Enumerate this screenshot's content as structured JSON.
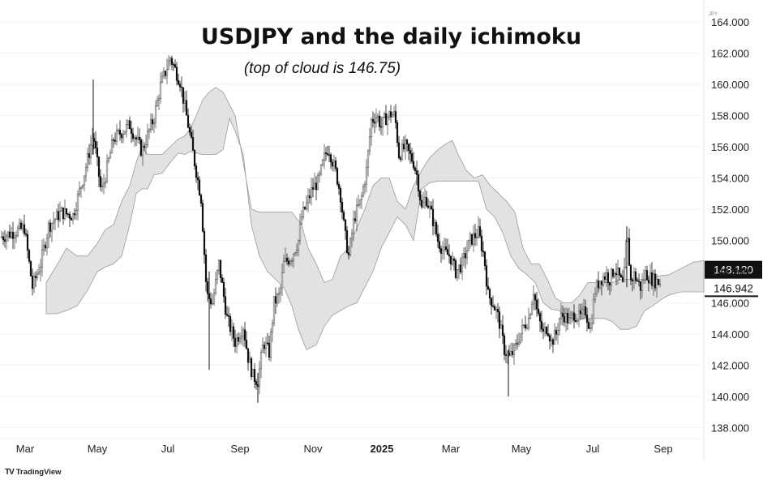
{
  "chart_data": {
    "type": "candlestick",
    "title": "USDJPY and the daily ichimoku",
    "subtitle": "(top of cloud is 146.75)",
    "unit": "JPY",
    "ylim": [
      137,
      164
    ],
    "y_ticks": [
      "164.000",
      "162.000",
      "160.000",
      "158.000",
      "156.000",
      "154.000",
      "152.000",
      "150.000",
      "148.000",
      "146.000",
      "144.000",
      "142.000",
      "140.000",
      "138.000"
    ],
    "x_ticks": [
      "Mar",
      "May",
      "Jul",
      "Sep",
      "Nov",
      "2025",
      "Mar",
      "May",
      "Jul",
      "Sep"
    ],
    "x_period": "daily, Feb 2024 – Oct 2025",
    "price_label": "148.120",
    "level_label": "146.942",
    "level_value": 146.942,
    "price_value": 148.12,
    "price_path": [
      [
        0,
        150.2
      ],
      [
        30,
        150.8
      ],
      [
        40,
        147.0
      ],
      [
        50,
        148.5
      ],
      [
        60,
        150.9
      ],
      [
        75,
        151.8
      ],
      [
        90,
        151.6
      ],
      [
        105,
        154.5
      ],
      [
        115,
        156.8
      ],
      [
        125,
        153.0
      ],
      [
        140,
        156.5
      ],
      [
        160,
        157.4
      ],
      [
        175,
        155.7
      ],
      [
        190,
        157.9
      ],
      [
        198,
        159.9
      ],
      [
        210,
        161.7
      ],
      [
        222,
        160.2
      ],
      [
        232,
        157.4
      ],
      [
        240,
        155.0
      ],
      [
        248,
        152.7
      ],
      [
        255,
        146.5
      ],
      [
        262,
        146.0
      ],
      [
        270,
        148.5
      ],
      [
        280,
        145.0
      ],
      [
        290,
        143.5
      ],
      [
        300,
        144.5
      ],
      [
        306,
        142.5
      ],
      [
        312,
        141.3
      ],
      [
        318,
        141.0
      ],
      [
        325,
        143.5
      ],
      [
        332,
        142.8
      ],
      [
        338,
        146.0
      ],
      [
        345,
        146.5
      ],
      [
        350,
        148.5
      ],
      [
        360,
        149.0
      ],
      [
        368,
        150.0
      ],
      [
        372,
        151.5
      ],
      [
        378,
        152.3
      ],
      [
        385,
        153.3
      ],
      [
        393,
        153.8
      ],
      [
        400,
        155.3
      ],
      [
        405,
        156.0
      ],
      [
        415,
        154.2
      ],
      [
        420,
        152.9
      ],
      [
        425,
        150.5
      ],
      [
        430,
        149.0
      ],
      [
        437,
        151.5
      ],
      [
        445,
        152.5
      ],
      [
        452,
        154.5
      ],
      [
        458,
        157.7
      ],
      [
        465,
        158.0
      ],
      [
        470,
        157.3
      ],
      [
        475,
        157.8
      ],
      [
        482,
        158.1
      ],
      [
        487,
        158.0
      ],
      [
        492,
        155.5
      ],
      [
        500,
        156.0
      ],
      [
        510,
        155.0
      ],
      [
        515,
        154.0
      ],
      [
        520,
        152.0
      ],
      [
        525,
        152.8
      ],
      [
        533,
        151.5
      ],
      [
        540,
        150.0
      ],
      [
        548,
        149.2
      ],
      [
        555,
        149.0
      ],
      [
        562,
        148.0
      ],
      [
        570,
        148.5
      ],
      [
        580,
        150.0
      ],
      [
        590,
        150.5
      ],
      [
        597,
        149.0
      ],
      [
        602,
        146.5
      ],
      [
        608,
        146.0
      ],
      [
        615,
        145.0
      ],
      [
        622,
        143.0
      ],
      [
        628,
        142.5
      ],
      [
        635,
        143.0
      ],
      [
        640,
        143.8
      ],
      [
        646,
        144.5
      ],
      [
        652,
        145.0
      ],
      [
        658,
        146.8
      ],
      [
        663,
        145.2
      ],
      [
        670,
        144.0
      ],
      [
        675,
        144.5
      ],
      [
        680,
        143.5
      ],
      [
        686,
        144.0
      ],
      [
        690,
        145.0
      ],
      [
        696,
        145.2
      ],
      [
        702,
        144.8
      ],
      [
        708,
        145.3
      ],
      [
        715,
        145.0
      ],
      [
        722,
        145.5
      ],
      [
        728,
        144.3
      ],
      [
        734,
        146.8
      ],
      [
        740,
        147.5
      ],
      [
        748,
        147.8
      ],
      [
        752,
        147.5
      ],
      [
        758,
        148.2
      ],
      [
        764,
        147.6
      ],
      [
        769,
        147.0
      ],
      [
        773,
        150.5
      ],
      [
        778,
        147.4
      ],
      [
        782,
        147.8
      ],
      [
        790,
        147.0
      ],
      [
        796,
        147.9
      ],
      [
        802,
        147.6
      ],
      [
        808,
        147.4
      ],
      [
        814,
        147.3
      ]
    ],
    "cloud_top": [
      [
        57,
        147.3
      ],
      [
        70,
        148.4
      ],
      [
        82,
        149.5
      ],
      [
        95,
        149.0
      ],
      [
        108,
        149.0
      ],
      [
        120,
        149.8
      ],
      [
        130,
        150.7
      ],
      [
        140,
        151.0
      ],
      [
        150,
        152.5
      ],
      [
        160,
        153.5
      ],
      [
        168,
        155.0
      ],
      [
        175,
        156.0
      ],
      [
        182,
        155.5
      ],
      [
        190,
        155.5
      ],
      [
        200,
        155.5
      ],
      [
        210,
        156.0
      ],
      [
        220,
        156.5
      ],
      [
        228,
        156.7
      ],
      [
        235,
        157.2
      ],
      [
        242,
        158.0
      ],
      [
        250,
        159.0
      ],
      [
        258,
        159.5
      ],
      [
        266,
        159.8
      ],
      [
        275,
        159.5
      ],
      [
        290,
        158.0
      ],
      [
        300,
        155.0
      ],
      [
        310,
        152.0
      ],
      [
        320,
        151.8
      ],
      [
        340,
        151.8
      ],
      [
        360,
        151.8
      ],
      [
        372,
        151.0
      ],
      [
        380,
        149.5
      ],
      [
        390,
        148.5
      ],
      [
        400,
        147.3
      ],
      [
        410,
        147.5
      ],
      [
        420,
        149.0
      ],
      [
        430,
        149.5
      ],
      [
        440,
        150.8
      ],
      [
        450,
        152.0
      ],
      [
        460,
        153.5
      ],
      [
        470,
        154.0
      ],
      [
        480,
        154.0
      ],
      [
        490,
        152.5
      ],
      [
        500,
        152.0
      ],
      [
        510,
        153.5
      ],
      [
        520,
        154.5
      ],
      [
        530,
        155.3
      ],
      [
        540,
        155.8
      ],
      [
        550,
        156.2
      ],
      [
        558,
        156.4
      ],
      [
        565,
        155.5
      ],
      [
        575,
        154.5
      ],
      [
        585,
        154.0
      ],
      [
        595,
        154.2
      ],
      [
        605,
        153.5
      ],
      [
        615,
        153.0
      ],
      [
        625,
        152.5
      ],
      [
        635,
        151.8
      ],
      [
        645,
        149.5
      ],
      [
        655,
        148.5
      ],
      [
        665,
        148.5
      ],
      [
        675,
        147.5
      ],
      [
        685,
        146.3
      ],
      [
        695,
        146.0
      ],
      [
        705,
        146.0
      ],
      [
        715,
        146.5
      ],
      [
        725,
        147.3
      ],
      [
        735,
        147.3
      ],
      [
        745,
        147.3
      ],
      [
        755,
        147.3
      ],
      [
        765,
        147.5
      ],
      [
        780,
        147.5
      ],
      [
        795,
        147.5
      ],
      [
        810,
        147.7
      ],
      [
        825,
        147.8
      ],
      [
        840,
        148.2
      ],
      [
        855,
        148.6
      ],
      [
        868,
        148.7
      ]
    ],
    "cloud_bottom": [
      [
        57,
        145.3
      ],
      [
        70,
        145.3
      ],
      [
        82,
        145.5
      ],
      [
        95,
        145.8
      ],
      [
        108,
        146.8
      ],
      [
        120,
        148.0
      ],
      [
        130,
        148.3
      ],
      [
        140,
        148.5
      ],
      [
        150,
        149.0
      ],
      [
        160,
        151.0
      ],
      [
        168,
        153.0
      ],
      [
        175,
        153.3
      ],
      [
        182,
        153.3
      ],
      [
        190,
        154.2
      ],
      [
        200,
        154.3
      ],
      [
        210,
        155.0
      ],
      [
        220,
        155.6
      ],
      [
        228,
        155.5
      ],
      [
        235,
        155.7
      ],
      [
        242,
        155.6
      ],
      [
        250,
        155.5
      ],
      [
        258,
        155.5
      ],
      [
        266,
        155.5
      ],
      [
        275,
        155.8
      ],
      [
        283,
        157.8
      ],
      [
        290,
        157.0
      ],
      [
        300,
        155.5
      ],
      [
        310,
        151.0
      ],
      [
        320,
        149.0
      ],
      [
        330,
        148.0
      ],
      [
        340,
        147.5
      ],
      [
        350,
        147.0
      ],
      [
        360,
        145.8
      ],
      [
        368,
        144.3
      ],
      [
        378,
        143.0
      ],
      [
        390,
        143.3
      ],
      [
        400,
        144.5
      ],
      [
        410,
        145.2
      ],
      [
        420,
        145.5
      ],
      [
        430,
        145.8
      ],
      [
        440,
        146.0
      ],
      [
        450,
        147.0
      ],
      [
        460,
        148.0
      ],
      [
        470,
        149.5
      ],
      [
        480,
        150.5
      ],
      [
        490,
        151.5
      ],
      [
        500,
        151.0
      ],
      [
        510,
        150.0
      ],
      [
        520,
        153.3
      ],
      [
        530,
        153.7
      ],
      [
        540,
        153.8
      ],
      [
        550,
        153.8
      ],
      [
        560,
        153.8
      ],
      [
        575,
        153.8
      ],
      [
        590,
        153.8
      ],
      [
        600,
        152.0
      ],
      [
        610,
        151.5
      ],
      [
        620,
        150.5
      ],
      [
        630,
        149.0
      ],
      [
        640,
        148.2
      ],
      [
        650,
        147.8
      ],
      [
        660,
        147.3
      ],
      [
        670,
        146.0
      ],
      [
        680,
        145.6
      ],
      [
        690,
        145.5
      ],
      [
        700,
        145.0
      ],
      [
        715,
        145.0
      ],
      [
        725,
        145.0
      ],
      [
        735,
        145.0
      ],
      [
        745,
        145.0
      ],
      [
        755,
        144.8
      ],
      [
        765,
        144.3
      ],
      [
        775,
        144.3
      ],
      [
        785,
        144.5
      ],
      [
        795,
        145.5
      ],
      [
        805,
        145.8
      ],
      [
        815,
        146.2
      ],
      [
        825,
        146.5
      ],
      [
        840,
        146.7
      ],
      [
        855,
        146.7
      ],
      [
        868,
        146.7
      ]
    ]
  },
  "footer": {
    "brand_logo": "TV",
    "brand_name": "TradingView"
  }
}
